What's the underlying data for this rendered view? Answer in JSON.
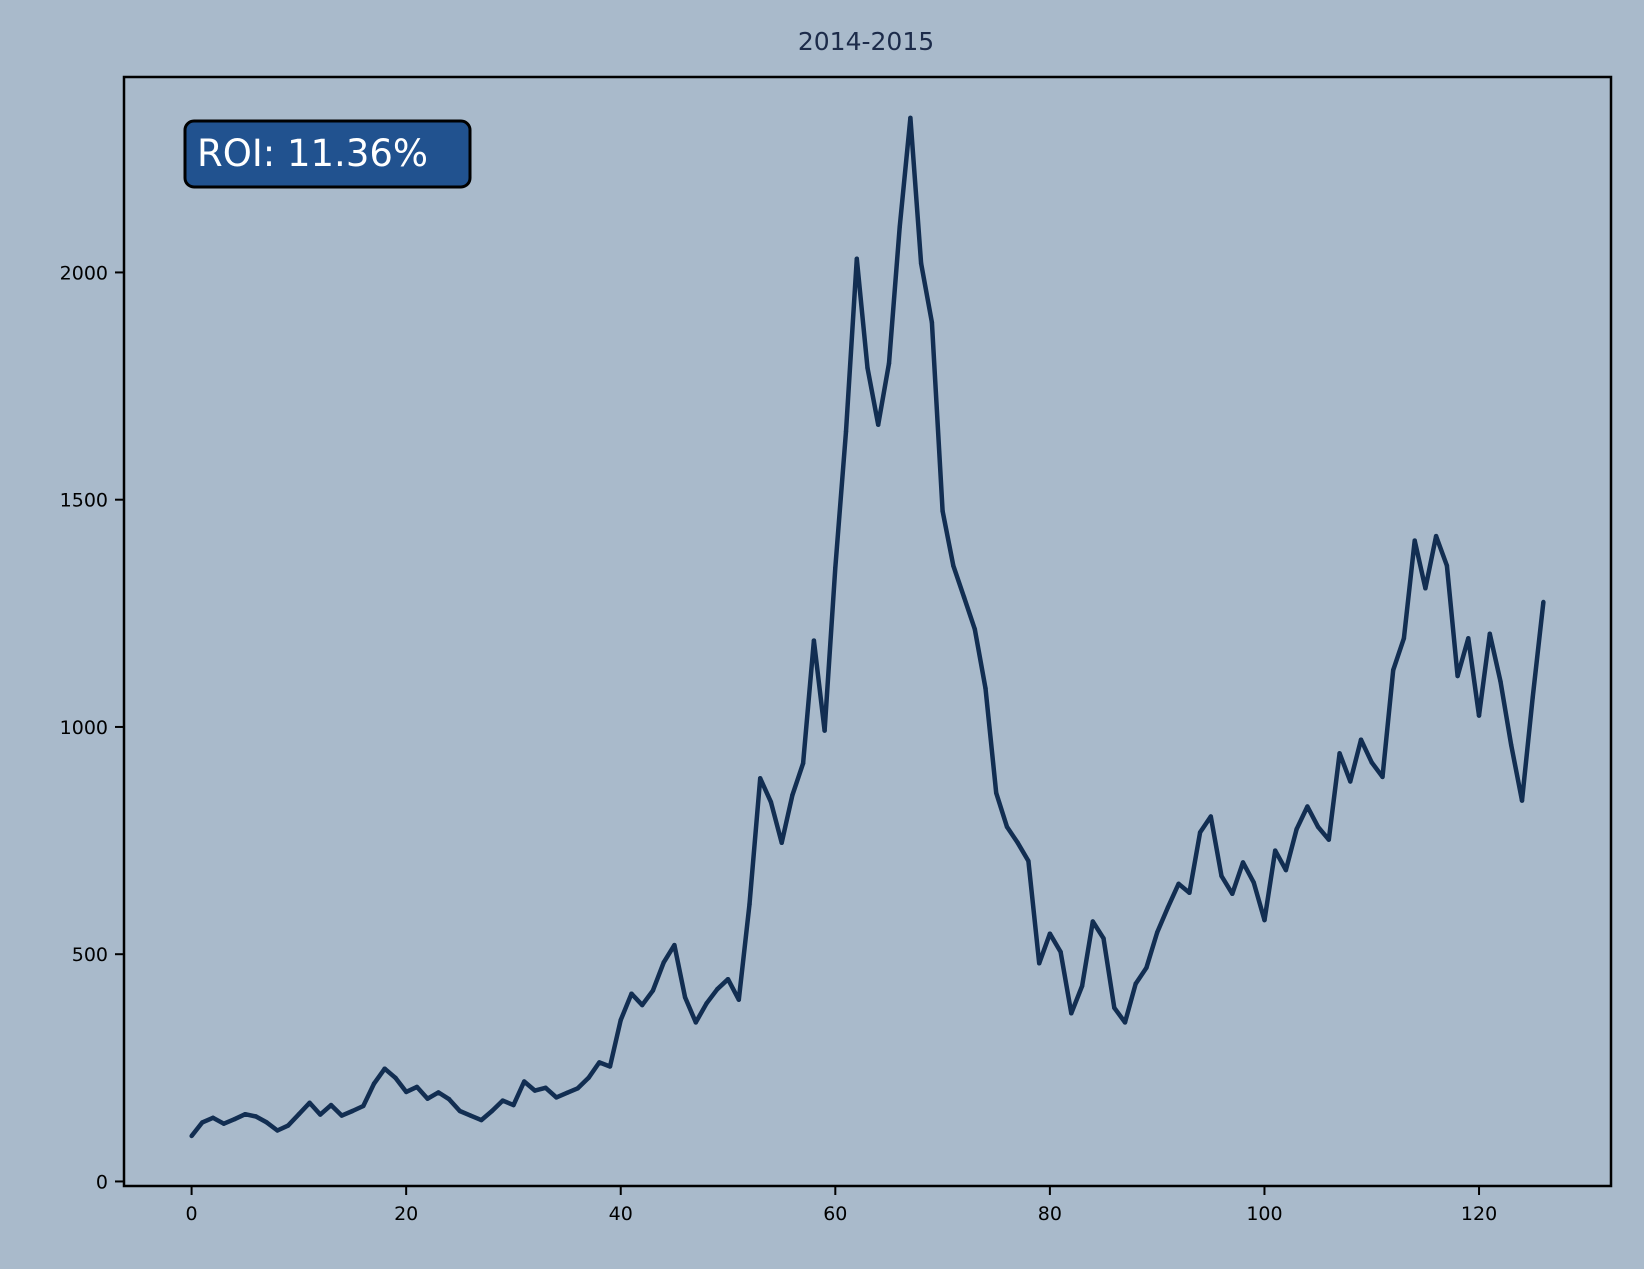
{
  "chart_data": {
    "type": "line",
    "title": "2014-2015",
    "xlabel": "",
    "ylabel": "",
    "xlim": [
      -6.3,
      132.3
    ],
    "ylim": [
      -10,
      2430
    ],
    "x_ticks": [
      0,
      20,
      40,
      60,
      80,
      100,
      120
    ],
    "y_ticks": [
      0,
      500,
      1000,
      1500,
      2000
    ],
    "grid": false,
    "annotation": {
      "text": "ROI: 11.36%",
      "position": "top-left"
    },
    "colors": {
      "background": "#a9bacb",
      "line": "#122e52",
      "annotation_box": "#21528f",
      "annotation_text": "#ffffff"
    },
    "series": [
      {
        "values": [
          100,
          130,
          140,
          127,
          137,
          148,
          143,
          130,
          112,
          123,
          148,
          173,
          147,
          168,
          145,
          155,
          166,
          215,
          248,
          228,
          197,
          208,
          182,
          196,
          181,
          155,
          145,
          135,
          155,
          178,
          168,
          220,
          200,
          206,
          185,
          195,
          205,
          228,
          262,
          253,
          355,
          413,
          388,
          420,
          482,
          520,
          405,
          350,
          392,
          423,
          445,
          400,
          610,
          887,
          835,
          745,
          850,
          920,
          1190,
          992,
          1350,
          1650,
          2030,
          1790,
          1665,
          1800,
          2100,
          2340,
          2020,
          1890,
          1475,
          1355,
          1285,
          1215,
          1085,
          855,
          780,
          745,
          705,
          480,
          545,
          505,
          370,
          430,
          572,
          535,
          382,
          350,
          435,
          470,
          548,
          603,
          655,
          635,
          768,
          803,
          672,
          633,
          702,
          658,
          575,
          728,
          685,
          775,
          825,
          780,
          752,
          942,
          880,
          972,
          922,
          890,
          1125,
          1195,
          1410,
          1305,
          1420,
          1355,
          1112,
          1195,
          1025,
          1205,
          1100,
          960,
          838,
          1065,
          1275
        ]
      }
    ]
  }
}
